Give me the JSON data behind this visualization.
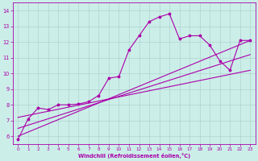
{
  "xlabel": "Windchill (Refroidissement éolien,°C)",
  "bg_color": "#cceee8",
  "line_color": "#aa00aa",
  "grid_color": "#aacccc",
  "xlim": [
    -0.5,
    23.5
  ],
  "ylim": [
    5.5,
    14.5
  ],
  "xticks": [
    0,
    1,
    2,
    3,
    4,
    5,
    6,
    7,
    8,
    9,
    10,
    11,
    12,
    13,
    14,
    15,
    16,
    17,
    18,
    19,
    20,
    21,
    22,
    23
  ],
  "yticks": [
    6,
    7,
    8,
    9,
    10,
    11,
    12,
    13,
    14
  ],
  "jagged_x": [
    0,
    1,
    2,
    3,
    4,
    5,
    6,
    7,
    8,
    9,
    10,
    11,
    12,
    13,
    14,
    15,
    16,
    17,
    18,
    19,
    20,
    21,
    22,
    23
  ],
  "jagged_y": [
    5.8,
    7.1,
    7.8,
    7.7,
    8.0,
    8.0,
    8.05,
    8.2,
    8.6,
    9.7,
    9.8,
    11.5,
    12.4,
    13.3,
    13.6,
    13.8,
    12.2,
    12.4,
    12.4,
    11.8,
    10.8,
    10.2,
    12.1,
    12.1
  ],
  "trend1_x": [
    0,
    23
  ],
  "trend1_y": [
    6.0,
    12.1
  ],
  "trend2_x": [
    0,
    23
  ],
  "trend2_y": [
    6.5,
    11.2
  ],
  "trend3_x": [
    0,
    23
  ],
  "trend3_y": [
    7.2,
    10.2
  ]
}
